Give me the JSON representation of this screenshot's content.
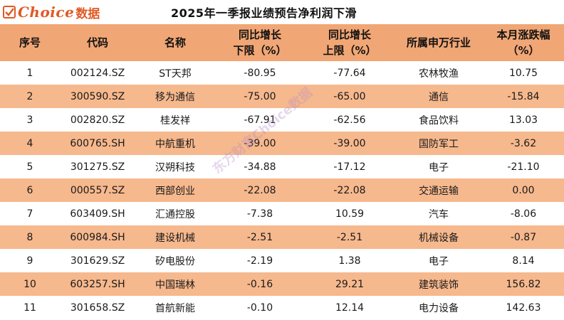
{
  "brand": {
    "logo_text": "Choice",
    "logo_cn": "数据",
    "accent": "#e05a25"
  },
  "title": "2025年一季报业绩预告净利润下滑",
  "columns": {
    "no": "序号",
    "code": "代码",
    "name": "名称",
    "low_1": "同比增长",
    "low_2": "下限（%）",
    "high_1": "同比增长",
    "high_2": "上限（%）",
    "industry": "所属申万行业",
    "chg_1": "本月涨跌幅",
    "chg_2": "（%）"
  },
  "rows": [
    {
      "no": "1",
      "code": "002124.SZ",
      "name": "ST天邦",
      "low": "-80.95",
      "high": "-77.64",
      "industry": "农林牧渔",
      "chg": "10.75"
    },
    {
      "no": "2",
      "code": "300590.SZ",
      "name": "移为通信",
      "low": "-75.00",
      "high": "-65.00",
      "industry": "通信",
      "chg": "-15.84"
    },
    {
      "no": "3",
      "code": "002820.SZ",
      "name": "桂发祥",
      "low": "-67.91",
      "high": "-62.56",
      "industry": "食品饮料",
      "chg": "13.03"
    },
    {
      "no": "4",
      "code": "600765.SH",
      "name": "中航重机",
      "low": "-39.00",
      "high": "-39.00",
      "industry": "国防军工",
      "chg": "-3.62"
    },
    {
      "no": "5",
      "code": "301275.SZ",
      "name": "汉朔科技",
      "low": "-34.88",
      "high": "-17.12",
      "industry": "电子",
      "chg": "-21.10"
    },
    {
      "no": "6",
      "code": "000557.SZ",
      "name": "西部创业",
      "low": "-22.08",
      "high": "-22.08",
      "industry": "交通运输",
      "chg": "0.00"
    },
    {
      "no": "7",
      "code": "603409.SH",
      "name": "汇通控股",
      "low": "-7.38",
      "high": "10.59",
      "industry": "汽车",
      "chg": "-8.06"
    },
    {
      "no": "8",
      "code": "600984.SH",
      "name": "建设机械",
      "low": "-2.51",
      "high": "-2.51",
      "industry": "机械设备",
      "chg": "-0.87"
    },
    {
      "no": "9",
      "code": "301629.SZ",
      "name": "矽电股份",
      "low": "-2.19",
      "high": "1.38",
      "industry": "电子",
      "chg": "8.14"
    },
    {
      "no": "10",
      "code": "603257.SH",
      "name": "中国瑞林",
      "low": "-0.16",
      "high": "29.21",
      "industry": "建筑装饰",
      "chg": "156.82"
    },
    {
      "no": "11",
      "code": "301658.SZ",
      "name": "首航新能",
      "low": "-0.10",
      "high": "12.14",
      "industry": "电力设备",
      "chg": "142.63"
    }
  ],
  "watermark": "东方财富Choice数据"
}
